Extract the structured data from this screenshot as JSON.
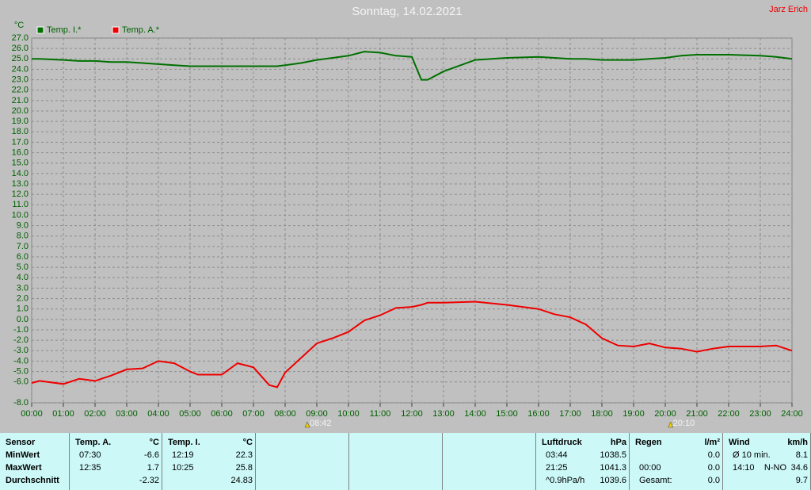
{
  "chart_data": {
    "type": "line",
    "title": "Sonntag, 14.02.2021",
    "author": "Jarz Erich",
    "y_unit": "°C",
    "grid": true,
    "x": [
      0,
      0.25,
      1,
      1.5,
      2,
      2.5,
      3,
      3.5,
      4,
      4.5,
      5,
      5.25,
      6,
      6.5,
      7,
      7.5,
      7.75,
      8,
      8.5,
      9,
      9.5,
      10,
      10.5,
      11,
      11.5,
      12,
      12.3,
      12.5,
      13,
      14,
      15,
      16,
      16.5,
      17,
      17.5,
      18,
      18.5,
      19,
      19.5,
      20,
      20.5,
      21,
      21.5,
      22,
      23,
      23.5,
      24
    ],
    "series": [
      {
        "name": "Temp. I.*",
        "color": "#007000",
        "values": [
          25.0,
          25.0,
          24.9,
          24.8,
          24.8,
          24.7,
          24.7,
          24.6,
          24.5,
          24.4,
          24.3,
          24.3,
          24.3,
          24.3,
          24.3,
          24.3,
          24.3,
          24.4,
          24.6,
          24.9,
          25.1,
          25.3,
          25.7,
          25.6,
          25.3,
          25.2,
          23.0,
          23.0,
          23.8,
          24.9,
          25.1,
          25.2,
          25.1,
          25.0,
          25.0,
          24.9,
          24.9,
          24.9,
          25.0,
          25.1,
          25.3,
          25.4,
          25.4,
          25.4,
          25.3,
          25.2,
          25.0
        ]
      },
      {
        "name": "Temp. A.*",
        "color": "#ee0000",
        "values": [
          -6.1,
          -5.9,
          -6.2,
          -5.7,
          -5.9,
          -5.4,
          -4.8,
          -4.7,
          -4.0,
          -4.2,
          -5.0,
          -5.3,
          -5.3,
          -4.2,
          -4.6,
          -6.3,
          -6.5,
          -5.1,
          -3.7,
          -2.3,
          -1.8,
          -1.2,
          -0.1,
          0.4,
          1.1,
          1.2,
          1.4,
          1.6,
          1.6,
          1.7,
          1.4,
          1.0,
          0.5,
          0.2,
          -0.5,
          -1.8,
          -2.5,
          -2.6,
          -2.3,
          -2.7,
          -2.8,
          -3.1,
          -2.8,
          -2.6,
          -2.6,
          -2.5,
          -3.0
        ]
      }
    ],
    "xlim": [
      0,
      24
    ],
    "xticks": [
      {
        "value": 0,
        "label": "00:00"
      },
      {
        "value": 1,
        "label": "01:00"
      },
      {
        "value": 2,
        "label": "02:00"
      },
      {
        "value": 3,
        "label": "03:00"
      },
      {
        "value": 4,
        "label": "04:00"
      },
      {
        "value": 5,
        "label": "05:00"
      },
      {
        "value": 6,
        "label": "06:00"
      },
      {
        "value": 7,
        "label": "07:00"
      },
      {
        "value": 8,
        "label": "08:00"
      },
      {
        "value": 9,
        "label": "09:00"
      },
      {
        "value": 10,
        "label": "10:00"
      },
      {
        "value": 11,
        "label": "11:00"
      },
      {
        "value": 12,
        "label": "12:00"
      },
      {
        "value": 13,
        "label": "13:00"
      },
      {
        "value": 14,
        "label": "14:00"
      },
      {
        "value": 15,
        "label": "15:00"
      },
      {
        "value": 16,
        "label": "16:00"
      },
      {
        "value": 17,
        "label": "17:00"
      },
      {
        "value": 18,
        "label": "18:00"
      },
      {
        "value": 19,
        "label": "19:00"
      },
      {
        "value": 20,
        "label": "20:00"
      },
      {
        "value": 21,
        "label": "21:00"
      },
      {
        "value": 22,
        "label": "22:00"
      },
      {
        "value": 23,
        "label": "23:00"
      },
      {
        "value": 24,
        "label": "24:00"
      }
    ],
    "ylim": [
      -8,
      27
    ],
    "yticks": [
      {
        "value": 27,
        "label": "27.0"
      },
      {
        "value": 26,
        "label": "26.0"
      },
      {
        "value": 25,
        "label": "25.0"
      },
      {
        "value": 24,
        "label": "24.0"
      },
      {
        "value": 23,
        "label": "23.0"
      },
      {
        "value": 22,
        "label": "22.0"
      },
      {
        "value": 21,
        "label": "21.0"
      },
      {
        "value": 20,
        "label": "20.0"
      },
      {
        "value": 19,
        "label": "19.0"
      },
      {
        "value": 18,
        "label": "18.0"
      },
      {
        "value": 17,
        "label": "17.0"
      },
      {
        "value": 16,
        "label": "16.0"
      },
      {
        "value": 15,
        "label": "15.0"
      },
      {
        "value": 14,
        "label": "14.0"
      },
      {
        "value": 13,
        "label": "13.0"
      },
      {
        "value": 12,
        "label": "12.0"
      },
      {
        "value": 11,
        "label": "11.0"
      },
      {
        "value": 10,
        "label": "10.0"
      },
      {
        "value": 9,
        "label": "9.0"
      },
      {
        "value": 8,
        "label": "8.0"
      },
      {
        "value": 7,
        "label": "7.0"
      },
      {
        "value": 6,
        "label": "6.0"
      },
      {
        "value": 5,
        "label": "5.0"
      },
      {
        "value": 4,
        "label": "4.0"
      },
      {
        "value": 3,
        "label": "3.0"
      },
      {
        "value": 2,
        "label": "2.0"
      },
      {
        "value": 1,
        "label": "1.0"
      },
      {
        "value": 0,
        "label": "0.0"
      },
      {
        "value": -1,
        "label": "-1.0"
      },
      {
        "value": -2,
        "label": "-2.0"
      },
      {
        "value": -3,
        "label": "-3.0"
      },
      {
        "value": -4,
        "label": "-4.0"
      },
      {
        "value": -5,
        "label": "-5.0"
      },
      {
        "value": -6,
        "label": "-6.0"
      },
      {
        "value": -8,
        "label": "-8.0"
      }
    ],
    "annotations": [
      {
        "x": 8.7,
        "label": "08:42"
      },
      {
        "x": 20.1667,
        "label": "20:10"
      }
    ]
  },
  "stats": {
    "panels": [
      {
        "title": "Sensor",
        "rows": [
          {
            "time": "MinWert"
          },
          {
            "time": "MaxWert"
          },
          {
            "time": "Durchschnitt"
          }
        ]
      },
      {
        "title": "Temp. A.",
        "unit": "°C",
        "rows": [
          {
            "time": "07:30",
            "value": "-6.6"
          },
          {
            "time": "12:35",
            "value": "1.7"
          },
          {
            "value": "-2.32"
          }
        ]
      },
      {
        "title": "Temp. I.",
        "unit": "°C",
        "rows": [
          {
            "time": "12:19",
            "value": "22.3"
          },
          {
            "time": "10:25",
            "value": "25.8"
          },
          {
            "value": "24.83"
          }
        ]
      },
      {
        "rows": []
      },
      {
        "rows": []
      },
      {
        "rows": []
      },
      {
        "title": "Luftdruck",
        "unit": "hPa",
        "rows": [
          {
            "time": "03:44",
            "value": "1038.5"
          },
          {
            "time": "21:25",
            "value": "1041.3"
          },
          {
            "time": "^0.9hPa/h",
            "value": "1039.6"
          }
        ]
      },
      {
        "title": "Regen",
        "unit": "l/m²",
        "rows": [
          {
            "value": "0.0"
          },
          {
            "time": "00:00",
            "value": "0.0"
          },
          {
            "time": "Gesamt:",
            "value": "0.0"
          }
        ]
      },
      {
        "title": "Wind",
        "unit": "km/h",
        "rows": [
          {
            "time": "Ø 10 min.",
            "value": "8.1"
          },
          {
            "time": "14:10",
            "dir": "N-NO",
            "value": "34.6"
          },
          {
            "value": "9.7"
          }
        ]
      }
    ]
  }
}
